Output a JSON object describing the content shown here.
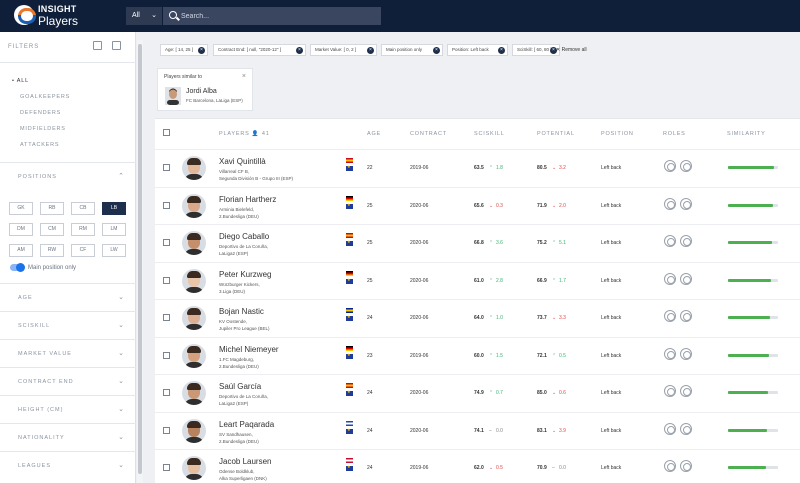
{
  "header": {
    "brand_top": "INSIGHT",
    "brand_bottom": "Players",
    "scope_select": "All",
    "search_placeholder": "Search..."
  },
  "sidebar": {
    "title": "FILTERS",
    "categories": [
      "ALL",
      "GOALKEEPERS",
      "DEFENDERS",
      "MIDFIELDERS",
      "ATTACKERS"
    ],
    "positions_label": "POSITIONS",
    "positions": [
      "GK",
      "RB",
      "CB",
      "LB",
      "DM",
      "CM",
      "RM",
      "LM",
      "AM",
      "RW",
      "CF",
      "LW"
    ],
    "selected_position": "LB",
    "main_position_only_label": "Main position only",
    "sections": [
      "AGE",
      "SCISKILL",
      "MARKET VALUE",
      "CONTRACT END",
      "HEIGHT (CM)",
      "NATIONALITY",
      "LEAGUES"
    ]
  },
  "filters": {
    "chips": [
      "Age: [ 14, 25 ]",
      "Contract End: [ null, \"2020-12\" ]",
      "Market Value: [ 0, 2 ]",
      "Main position only",
      "Position: Left back",
      "SciSkill: [ 60, 80 ]"
    ],
    "remove_all": "Remove all"
  },
  "similar": {
    "title": "Players similar to",
    "name": "Jordi Alba",
    "club": "FC Barcelona, LaLiga (ESP)"
  },
  "table": {
    "headers": {
      "players": "PLAYERS",
      "count": "41",
      "age": "AGE",
      "contract": "CONTRACT",
      "sciskill": "SCISKILL",
      "potential": "POTENTIAL",
      "position": "POSITION",
      "roles": "ROLES",
      "similarity": "SIMILARITY"
    },
    "rows": [
      {
        "name": "Xavi Quintillà",
        "club1": "Villarreal CF B,",
        "club2": "Segunda División B - Grupo III (ESP)",
        "flag": "esp",
        "age": "22",
        "contract": "2019-06",
        "sciskill": "63.5",
        "sk_delta": "1.8",
        "sk_dir": "up",
        "potential": "80.5",
        "pot_delta": "3.2",
        "pot_dir": "dn",
        "position": "Left back",
        "similarity": 0.92,
        "roles": 1
      },
      {
        "name": "Florian Hartherz",
        "club1": "Arminia Bielefeld,",
        "club2": "2.Bundesliga (DEU)",
        "flag": "deu",
        "age": "25",
        "contract": "2020-06",
        "sciskill": "65.6",
        "sk_delta": "0.3",
        "sk_dir": "dn",
        "potential": "71.9",
        "pot_delta": "2.0",
        "pot_dir": "dn",
        "position": "Left back",
        "similarity": 0.9,
        "roles": 2
      },
      {
        "name": "Diego Caballo",
        "club1": "Deportivo de La Coruña,",
        "club2": "LaLiga2 (ESP)",
        "flag": "esp",
        "age": "25",
        "contract": "2020-06",
        "sciskill": "66.8",
        "sk_delta": "3.6",
        "sk_dir": "up",
        "potential": "75.2",
        "pot_delta": "5.1",
        "pot_dir": "up",
        "position": "Left back",
        "similarity": 0.88,
        "roles": 2
      },
      {
        "name": "Peter Kurzweg",
        "club1": "Würzburger Kickers,",
        "club2": "3.Liga (DEU)",
        "flag": "deu",
        "age": "25",
        "contract": "2020-06",
        "sciskill": "61.0",
        "sk_delta": "2.8",
        "sk_dir": "up",
        "potential": "66.9",
        "pot_delta": "1.7",
        "pot_dir": "up",
        "position": "Left back",
        "similarity": 0.86,
        "roles": 2
      },
      {
        "name": "Bojan Nastic",
        "club1": "KV Oostende,",
        "club2": "Jupiler Pro League (BEL)",
        "flag": "bih",
        "age": "24",
        "contract": "2020-06",
        "sciskill": "64.0",
        "sk_delta": "1.0",
        "sk_dir": "up",
        "potential": "73.7",
        "pot_delta": "3.3",
        "pot_dir": "dn",
        "position": "Left back",
        "similarity": 0.84,
        "roles": 2
      },
      {
        "name": "Michel Niemeyer",
        "club1": "1.FC Magdeburg,",
        "club2": "2.Bundesliga (DEU)",
        "flag": "deu",
        "age": "23",
        "contract": "2019-06",
        "sciskill": "60.0",
        "sk_delta": "1.5",
        "sk_dir": "up",
        "potential": "72.1",
        "pot_delta": "0.5",
        "pot_dir": "up",
        "position": "Left back",
        "similarity": 0.82,
        "roles": 2
      },
      {
        "name": "Saúl García",
        "club1": "Deportivo de La Coruña,",
        "club2": "LaLiga2 (ESP)",
        "flag": "esp",
        "age": "24",
        "contract": "2020-06",
        "sciskill": "74.9",
        "sk_delta": "0.7",
        "sk_dir": "up",
        "potential": "85.0",
        "pot_delta": "0.6",
        "pot_dir": "dn",
        "position": "Left back",
        "similarity": 0.8,
        "roles": 1
      },
      {
        "name": "Leart Paqarada",
        "club1": "SV Sandhausen,",
        "club2": "2.Bundesliga (DEU)",
        "flag": "kos",
        "age": "24",
        "contract": "2020-06",
        "sciskill": "74.1",
        "sk_delta": "0.0",
        "sk_dir": "flat",
        "potential": "83.1",
        "pot_delta": "3.9",
        "pot_dir": "dn",
        "position": "Left back",
        "similarity": 0.78,
        "roles": 1
      },
      {
        "name": "Jacob Laursen",
        "club1": "Odense Boldklub,",
        "club2": "Alka Superligaen (DNK)",
        "flag": "dnk",
        "age": "24",
        "contract": "2019-06",
        "sciskill": "62.0",
        "sk_delta": "0.5",
        "sk_dir": "dn",
        "potential": "70.9",
        "pot_delta": "0.0",
        "pot_dir": "flat",
        "position": "Left back",
        "similarity": 0.76,
        "roles": 1
      }
    ]
  }
}
